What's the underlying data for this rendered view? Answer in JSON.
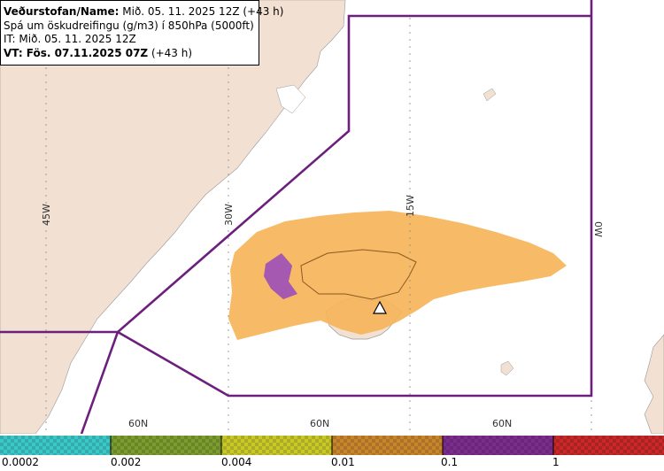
{
  "title": {
    "line1_bold": "Veðurstofan/Name:",
    "line1_rest": " Mið. 05. 11. 2025 12Z (+43 h)",
    "line2": "Spá um öskudreifingu (g/m3) í 850hPa (5000ft)",
    "line3": "IT: Mið. 05. 11. 2025 12Z",
    "line4_bold": "VT: Fös. 07.11.2025 07Z",
    "line4_rest": " (+43 h)"
  },
  "grid_labels": {
    "lon_45w": "45W",
    "lon_30w": "30W",
    "lon_15w": "15W",
    "lon_0w": "0W",
    "lat_a": "60N",
    "lat_b": "60N",
    "lat_c": "60N"
  },
  "legend": {
    "labels": [
      "0.0002",
      "0.002",
      "0.004",
      "0.01",
      "0.1",
      "1"
    ],
    "colors": [
      "#3cc8c8",
      "#7c9c30",
      "#c8c828",
      "#c8862c",
      "#7c2c8c",
      "#c82828"
    ]
  },
  "colors": {
    "land": "#f2e1d3",
    "sea": "#ffffff",
    "boundary": "#6d1f7d",
    "ash_low": "#f6b45a",
    "ash_high": "#9b4fb8"
  }
}
